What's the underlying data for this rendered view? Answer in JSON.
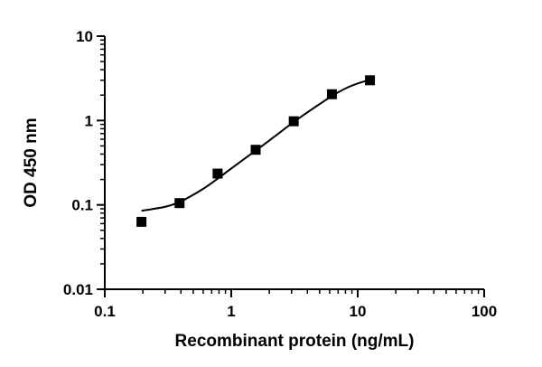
{
  "chart_data": {
    "type": "scatter",
    "title": "",
    "xlabel": "Recombinant protein (ng/mL)",
    "ylabel": "OD 450 nm",
    "xscale": "log",
    "yscale": "log",
    "xlim": [
      0.1,
      100
    ],
    "ylim": [
      0.01,
      10
    ],
    "x_ticks": [
      0.1,
      1,
      10,
      100
    ],
    "x_tick_labels": [
      "0.1",
      "1",
      "10",
      "100"
    ],
    "y_ticks": [
      0.01,
      0.1,
      1,
      10
    ],
    "y_tick_labels": [
      "0.01",
      "0.1",
      "1",
      "10"
    ],
    "grid": false,
    "legend": "none",
    "series": [
      {
        "marker": "square",
        "color": "#000000",
        "points": [
          {
            "x": 0.195,
            "y": 0.063
          },
          {
            "x": 0.39,
            "y": 0.105
          },
          {
            "x": 0.78,
            "y": 0.235
          },
          {
            "x": 1.56,
            "y": 0.45
          },
          {
            "x": 3.12,
            "y": 0.98
          },
          {
            "x": 6.25,
            "y": 2.05
          },
          {
            "x": 12.5,
            "y": 3.0
          }
        ]
      }
    ],
    "fit_curve": {
      "color": "#000000",
      "points": [
        {
          "x": 0.195,
          "y": 0.085
        },
        {
          "x": 0.3,
          "y": 0.095
        },
        {
          "x": 0.4,
          "y": 0.11
        },
        {
          "x": 0.6,
          "y": 0.155
        },
        {
          "x": 0.8,
          "y": 0.21
        },
        {
          "x": 1.0,
          "y": 0.27
        },
        {
          "x": 1.56,
          "y": 0.44
        },
        {
          "x": 2.0,
          "y": 0.58
        },
        {
          "x": 3.12,
          "y": 0.96
        },
        {
          "x": 4.0,
          "y": 1.25
        },
        {
          "x": 6.25,
          "y": 1.95
        },
        {
          "x": 8.0,
          "y": 2.4
        },
        {
          "x": 10.0,
          "y": 2.75
        },
        {
          "x": 12.5,
          "y": 3.05
        }
      ]
    }
  }
}
